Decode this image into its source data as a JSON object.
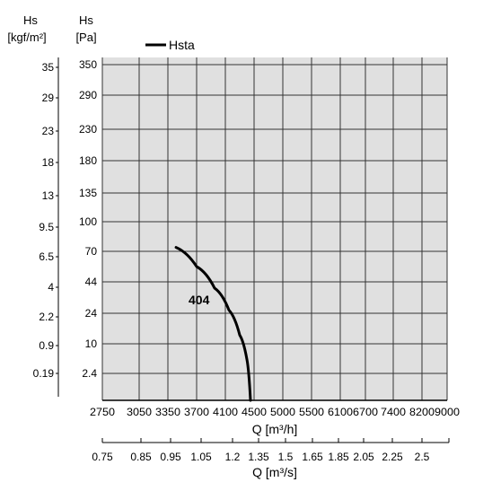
{
  "chart_data": {
    "type": "line",
    "left_axis_outer": {
      "title": "Hs",
      "unit": "[kgf/m²]",
      "ticks": [
        "35",
        "29",
        "23",
        "18",
        "13",
        "9.5",
        "6.5",
        "4",
        "2.2",
        "0.9",
        "0.19"
      ]
    },
    "left_axis_inner": {
      "title": "Hs",
      "unit": "[Pa]",
      "ticks": [
        "350",
        "290",
        "230",
        "180",
        "135",
        "100",
        "70",
        "44",
        "24",
        "10",
        "2.4"
      ]
    },
    "x_axis_primary": {
      "ticks": [
        "2750",
        "3050",
        "3350",
        "3700",
        "4100",
        "4500",
        "5000",
        "5500",
        "6100",
        "6700",
        "7400",
        "8200",
        "9000"
      ],
      "label": "Q [m³/h]"
    },
    "x_axis_secondary": {
      "ticks": [
        "0.75",
        "0.85",
        "0.95",
        "1.05",
        "1.2",
        "1.35",
        "1.5",
        "1.65",
        "1.85",
        "2.05",
        "2.25",
        "2.5"
      ],
      "label": "Q [m³/s]"
    },
    "legend": [
      {
        "name": "Hsta",
        "color": "#000000"
      }
    ],
    "series": [
      {
        "name": "404",
        "points": [
          {
            "q": 3450,
            "hs": 74
          },
          {
            "q": 3700,
            "hs": 57
          },
          {
            "q": 3950,
            "hs": 40
          },
          {
            "q": 4150,
            "hs": 26
          },
          {
            "q": 4300,
            "hs": 14
          },
          {
            "q": 4400,
            "hs": 6
          },
          {
            "q": 4450,
            "hs": 0
          }
        ]
      }
    ],
    "grid": true
  }
}
